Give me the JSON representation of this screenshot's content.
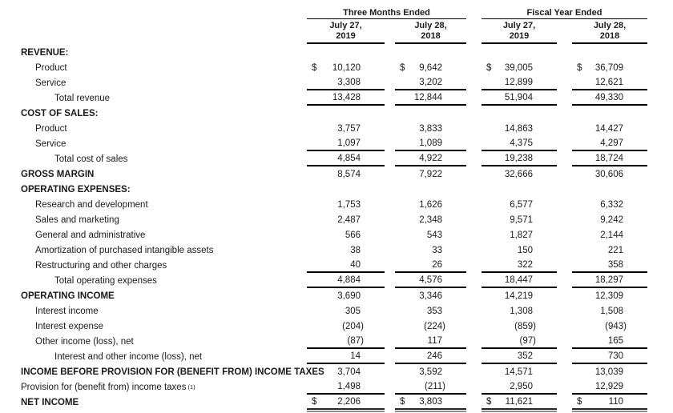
{
  "document": {
    "kind": "income-statement"
  },
  "table": {
    "column_groups": [
      {
        "title": "Three Months Ended",
        "columns": [
          {
            "line1": "July 27,",
            "line2": "2019"
          },
          {
            "line1": "July 28,",
            "line2": "2018"
          }
        ]
      },
      {
        "title": "Fiscal Year Ended",
        "columns": [
          {
            "line1": "July 27,",
            "line2": "2019"
          },
          {
            "line1": "July 28,",
            "line2": "2018"
          }
        ]
      }
    ],
    "rows": [
      {
        "label": "REVENUE:",
        "bold": true,
        "indent": 0,
        "values": [
          "",
          "",
          "",
          ""
        ]
      },
      {
        "label": "Product",
        "indent": 1,
        "dollar": true,
        "values": [
          "10,120",
          "9,642",
          "39,005",
          "36,709"
        ]
      },
      {
        "label": "Service",
        "indent": 1,
        "values": [
          "3,308",
          "3,202",
          "12,899",
          "12,621"
        ],
        "rule": "single"
      },
      {
        "label": "Total revenue",
        "indent": 2,
        "values": [
          "13,428",
          "12,844",
          "51,904",
          "49,330"
        ],
        "rule": "single"
      },
      {
        "label": "COST OF SALES:",
        "bold": true,
        "indent": 0,
        "values": [
          "",
          "",
          "",
          ""
        ]
      },
      {
        "label": "Product",
        "indent": 1,
        "values": [
          "3,757",
          "3,833",
          "14,863",
          "14,427"
        ]
      },
      {
        "label": "Service",
        "indent": 1,
        "values": [
          "1,097",
          "1,089",
          "4,375",
          "4,297"
        ],
        "rule": "single"
      },
      {
        "label": "Total cost of sales",
        "indent": 2,
        "values": [
          "4,854",
          "4,922",
          "19,238",
          "18,724"
        ],
        "rule": "single"
      },
      {
        "label": "GROSS MARGIN",
        "bold": true,
        "indent": 0,
        "values": [
          "8,574",
          "7,922",
          "32,666",
          "30,606"
        ]
      },
      {
        "label": "OPERATING EXPENSES:",
        "bold": true,
        "indent": 0,
        "values": [
          "",
          "",
          "",
          ""
        ]
      },
      {
        "label": "Research and development",
        "indent": 1,
        "values": [
          "1,753",
          "1,626",
          "6,577",
          "6,332"
        ]
      },
      {
        "label": "Sales and marketing",
        "indent": 1,
        "values": [
          "2,487",
          "2,348",
          "9,571",
          "9,242"
        ]
      },
      {
        "label": "General and administrative",
        "indent": 1,
        "values": [
          "566",
          "543",
          "1,827",
          "2,144"
        ]
      },
      {
        "label": "Amortization of purchased intangible assets",
        "indent": 1,
        "values": [
          "38",
          "33",
          "150",
          "221"
        ]
      },
      {
        "label": "Restructuring and other charges",
        "indent": 1,
        "values": [
          "40",
          "26",
          "322",
          "358"
        ],
        "rule": "single"
      },
      {
        "label": "Total operating expenses",
        "indent": 2,
        "values": [
          "4,884",
          "4,576",
          "18,447",
          "18,297"
        ],
        "rule": "single"
      },
      {
        "label": "OPERATING INCOME",
        "bold": true,
        "indent": 0,
        "values": [
          "3,690",
          "3,346",
          "14,219",
          "12,309"
        ]
      },
      {
        "label": "Interest income",
        "indent": 1,
        "values": [
          "305",
          "353",
          "1,308",
          "1,508"
        ]
      },
      {
        "label": "Interest expense",
        "indent": 1,
        "values": [
          "(204)",
          "(224)",
          "(859)",
          "(943)"
        ]
      },
      {
        "label": "Other income (loss), net",
        "indent": 1,
        "values": [
          "(87)",
          "117",
          "(97)",
          "165"
        ],
        "rule": "single"
      },
      {
        "label": "Interest and other income (loss), net",
        "indent": 2,
        "values": [
          "14",
          "246",
          "352",
          "730"
        ],
        "rule": "single"
      },
      {
        "label": "INCOME BEFORE PROVISION FOR (BENEFIT FROM) INCOME TAXES",
        "bold": true,
        "indent": 0,
        "values": [
          "3,704",
          "3,592",
          "14,571",
          "13,039"
        ]
      },
      {
        "label": "Provision for (benefit from) income taxes",
        "sup": "(1)",
        "indent": 0,
        "values": [
          "1,498",
          "(211)",
          "2,950",
          "12,929"
        ],
        "rule": "single"
      },
      {
        "label": "NET INCOME",
        "bold": true,
        "indent": 0,
        "dollar": true,
        "values": [
          "2,206",
          "3,803",
          "11,621",
          "110"
        ],
        "rule": "double"
      }
    ]
  },
  "symbols": {
    "dollar": "$"
  },
  "colors": {
    "background": "#ffffff",
    "text": "#1a1a1a",
    "rule": "#000000",
    "double_rule_secondary": "#8c8c8c"
  }
}
